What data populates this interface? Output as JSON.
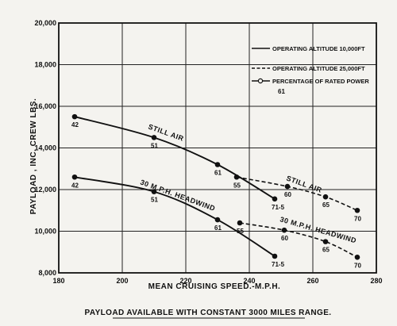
{
  "chart_data": {
    "type": "line",
    "caption": "PAYLOAD AVAILABLE WITH CONSTANT 3000 MILES RANGE.",
    "xlabel": "MEAN CRUISING SPEED.-M.P.H.",
    "ylabel": "PAYLOAD , INC. CREW    LBS.",
    "xlim": [
      180,
      280
    ],
    "ylim": [
      8000,
      20000
    ],
    "x_ticks": [
      "180",
      "200",
      "220",
      "240",
      "260",
      "280"
    ],
    "y_ticks": [
      "8,000",
      "10,000",
      "12,000",
      "14,000",
      "16,000",
      "18,000",
      "20,000"
    ],
    "grid": true,
    "legend_position": "top-right",
    "legend": [
      {
        "label": "OPERATING ALTITUDE 10,000FT",
        "style": "solid"
      },
      {
        "label": "OPERATING ALTITUDE 25,000FT",
        "style": "dashed"
      },
      {
        "label": "PERCENTAGE OF RATED POWER",
        "style": "marker",
        "sample": "61"
      }
    ],
    "series": [
      {
        "label": "STILL AIR",
        "style": "solid",
        "points": [
          {
            "x": 185,
            "y": 15500,
            "label": "42"
          },
          {
            "x": 210,
            "y": 14500,
            "label": "51"
          },
          {
            "x": 230,
            "y": 13200,
            "label": "61"
          },
          {
            "x": 248,
            "y": 11550,
            "label": "71-5"
          }
        ]
      },
      {
        "label": "30 M.P.H. HEADWIND",
        "style": "solid",
        "points": [
          {
            "x": 185,
            "y": 12600,
            "label": "42"
          },
          {
            "x": 210,
            "y": 11900,
            "label": "51"
          },
          {
            "x": 230,
            "y": 10550,
            "label": "61"
          },
          {
            "x": 248,
            "y": 8800,
            "label": "71-5"
          }
        ]
      },
      {
        "label": "STILL AIR",
        "style": "dashed",
        "points": [
          {
            "x": 236,
            "y": 12600,
            "label": "55"
          },
          {
            "x": 252,
            "y": 12150,
            "label": "60"
          },
          {
            "x": 264,
            "y": 11650,
            "label": "65"
          },
          {
            "x": 274,
            "y": 11000,
            "label": "70"
          }
        ]
      },
      {
        "label": "30 M.P.H. HEADWIND",
        "style": "dashed",
        "points": [
          {
            "x": 237,
            "y": 10400,
            "label": "55"
          },
          {
            "x": 251,
            "y": 10050,
            "label": "60"
          },
          {
            "x": 264,
            "y": 9500,
            "label": "65"
          },
          {
            "x": 274,
            "y": 8750,
            "label": "70"
          }
        ]
      }
    ]
  }
}
